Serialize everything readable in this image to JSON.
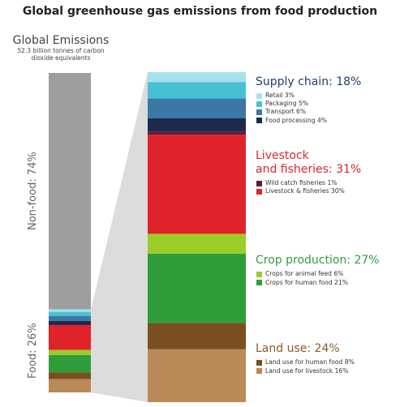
{
  "colors": {
    "nonfood": "#9e9e9e",
    "connector": "#dcdcdc",
    "retail": "#a8e1ee",
    "packaging": "#47c1d1",
    "transport": "#3d77a8",
    "food_processing": "#1e2a4a",
    "wild_catch": "#5a1f3f",
    "livestock": "#e0232a",
    "crops_animal": "#9ccc28",
    "crops_human": "#2f9e3a",
    "land_human": "#7a4f22",
    "land_livestock": "#b88a56",
    "supply_title": "#1f3d6b",
    "livestock_title": "#e0232a",
    "crop_title": "#2f9e3a",
    "land_title": "#8a5a2b"
  },
  "chart_data": {
    "type": "bar",
    "title": "Global greenhouse gas emissions from food production",
    "total_label": "Global Emissions",
    "total_sublabel": "52.3 billion tonnes of carbon dioxide equivalents",
    "overview": [
      {
        "name": "Non-food: 74%",
        "value": 74
      },
      {
        "name": "Food: 26%",
        "value": 26
      }
    ],
    "groups": [
      {
        "title": "Supply chain: 18%",
        "title_color_key": "supply_title",
        "items": [
          {
            "name": "Retail 3%",
            "value": 3,
            "color_key": "retail"
          },
          {
            "name": "Packaging 5%",
            "value": 5,
            "color_key": "packaging"
          },
          {
            "name": "Transport 6%",
            "value": 6,
            "color_key": "transport"
          },
          {
            "name": "Food processing 4%",
            "value": 4,
            "color_key": "food_processing"
          }
        ]
      },
      {
        "title": "Livestock and fisheries: 31%",
        "title_lines": [
          "Livestock",
          "and fisheries: 31%"
        ],
        "title_color_key": "livestock_title",
        "items": [
          {
            "name": "Wild catch fisheries 1%",
            "value": 1,
            "color_key": "wild_catch"
          },
          {
            "name": "Livestock & fisheries 30%",
            "value": 30,
            "color_key": "livestock"
          }
        ]
      },
      {
        "title": "Crop production: 27%",
        "title_color_key": "crop_title",
        "items": [
          {
            "name": "Crops for animal feed 6%",
            "value": 6,
            "color_key": "crops_animal"
          },
          {
            "name": "Crops for human food 21%",
            "value": 21,
            "color_key": "crops_human"
          }
        ]
      },
      {
        "title": "Land use: 24%",
        "title_color_key": "land_title",
        "items": [
          {
            "name": "Land use for human food 8%",
            "value": 8,
            "color_key": "land_human"
          },
          {
            "name": "Land use for livestock 16%",
            "value": 16,
            "color_key": "land_livestock"
          }
        ]
      }
    ]
  }
}
